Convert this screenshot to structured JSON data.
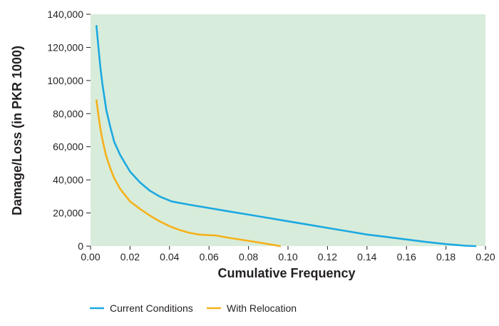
{
  "chart_data": {
    "type": "line",
    "title": "",
    "xlabel": "Cumulative Frequency",
    "ylabel": "Damage/Loss (in PKR 1000)",
    "xlim": [
      0,
      0.2
    ],
    "ylim": [
      0,
      140000
    ],
    "xticks": [
      "0.00",
      "0.02",
      "0.04",
      "0.06",
      "0.08",
      "0.10",
      "0.12",
      "0.14",
      "0.16",
      "0.18",
      "0.20"
    ],
    "yticks": [
      "0",
      "20,000",
      "40,000",
      "60,000",
      "80,000",
      "100,000",
      "120,000",
      "140,000"
    ],
    "grid": false,
    "legend": "bottom",
    "plot_background": "#d8ecdb",
    "series": [
      {
        "name": "Current Conditions",
        "color": "#1ba9e1",
        "x": [
          0.003,
          0.004,
          0.005,
          0.006,
          0.007,
          0.008,
          0.01,
          0.012,
          0.015,
          0.02,
          0.025,
          0.03,
          0.035,
          0.041,
          0.05,
          0.06,
          0.07,
          0.08,
          0.09,
          0.1,
          0.11,
          0.12,
          0.13,
          0.14,
          0.15,
          0.16,
          0.17,
          0.18,
          0.19,
          0.195
        ],
        "y": [
          133000,
          120000,
          108000,
          98000,
          90000,
          82000,
          72000,
          63000,
          55000,
          45000,
          38500,
          33500,
          30000,
          27000,
          25000,
          23000,
          21000,
          19000,
          17000,
          15000,
          13000,
          11000,
          9000,
          7000,
          5500,
          4000,
          2500,
          1200,
          200,
          0
        ]
      },
      {
        "name": "With Relocation",
        "color": "#f5b11a",
        "x": [
          0.003,
          0.004,
          0.005,
          0.006,
          0.007,
          0.008,
          0.01,
          0.012,
          0.015,
          0.02,
          0.025,
          0.03,
          0.035,
          0.04,
          0.045,
          0.05,
          0.055,
          0.06,
          0.063,
          0.07,
          0.08,
          0.09,
          0.096
        ],
        "y": [
          88000,
          79000,
          71000,
          64500,
          59000,
          54000,
          47000,
          41000,
          34500,
          27000,
          22500,
          18500,
          15000,
          12000,
          9800,
          8000,
          7000,
          6600,
          6500,
          5000,
          3200,
          1200,
          0
        ]
      }
    ]
  }
}
